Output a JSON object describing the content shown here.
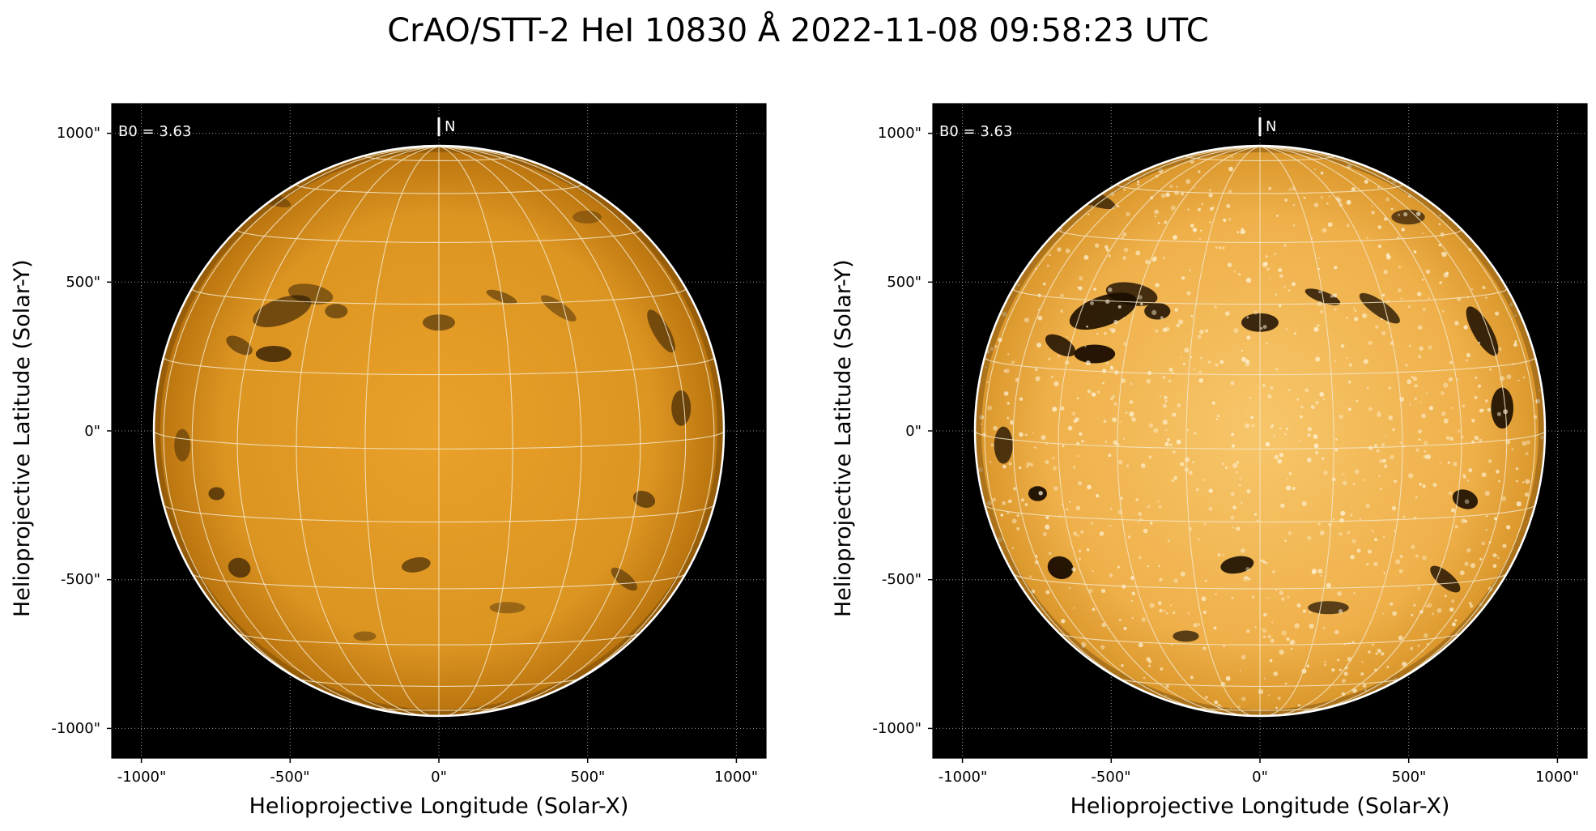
{
  "title": "CrAO/STT-2 HeI 10830 Å 2022-11-08 09:58:23 UTC",
  "colors": {
    "sky": "#000000",
    "disk_left_center": "#e9a12a",
    "disk_left_edge": "#b8720d",
    "disk_right_center": "#f7c66a",
    "disk_right_edge": "#d99529",
    "grid": "#f3e6c8",
    "limb": "#ffffff"
  },
  "panels": [
    {
      "id": "left",
      "b0_label": "B0 = 3.63",
      "north_label": "N",
      "xlabel": "Helioprojective Longitude (Solar-X)",
      "ylabel": "Helioprojective Latitude (Solar-Y)",
      "x_ticks": [
        "-1000\"",
        "-500\"",
        "0\"",
        "500\"",
        "1000\""
      ],
      "y_ticks": [
        "1000\"",
        "500\"",
        "0\"",
        "-500\"",
        "-1000\""
      ],
      "contrast": "normal"
    },
    {
      "id": "right",
      "b0_label": "B0 = 3.63",
      "north_label": "N",
      "xlabel": "Helioprojective Longitude (Solar-X)",
      "ylabel": "Helioprojective Latitude (Solar-Y)",
      "x_ticks": [
        "-1000\"",
        "-500\"",
        "0\"",
        "500\"",
        "1000\""
      ],
      "y_ticks": [
        "1000\"",
        "500\"",
        "0\"",
        "-500\"",
        "-1000\""
      ],
      "contrast": "enhanced"
    }
  ]
}
